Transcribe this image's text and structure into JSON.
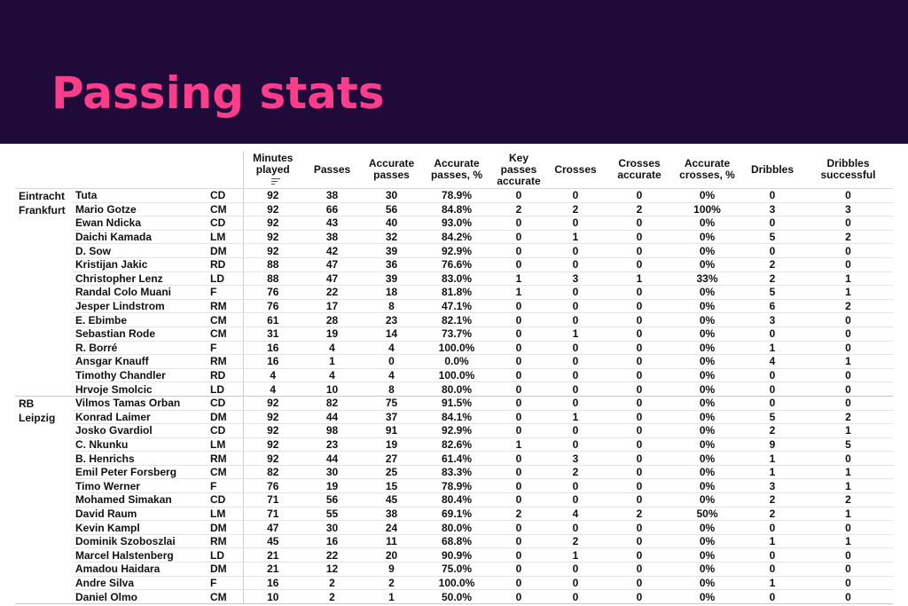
{
  "header": {
    "title": "Passing stats"
  },
  "colors": {
    "banner_bg": "#1f0a3a",
    "title": "#ff3d8b"
  },
  "table": {
    "columns": [
      {
        "key": "min",
        "label": "Minutes played",
        "sortable": true,
        "sort_icon": "sort-lines-icon"
      },
      {
        "key": "passes",
        "label": "Passes"
      },
      {
        "key": "acc",
        "label": "Accurate passes"
      },
      {
        "key": "accp",
        "label": "Accurate passes, %"
      },
      {
        "key": "key",
        "label": "Key passes accurate"
      },
      {
        "key": "cr",
        "label": "Crosses"
      },
      {
        "key": "cra",
        "label": "Crosses accurate"
      },
      {
        "key": "crp",
        "label": "Accurate crosses, %"
      },
      {
        "key": "dr",
        "label": "Dribbles"
      },
      {
        "key": "drs",
        "label": "Dribbles successful"
      }
    ],
    "teams": [
      {
        "name": "Eintracht Frankfurt",
        "rows": [
          [
            "Tuta",
            "CD",
            "92",
            "38",
            "30",
            "78.9%",
            "0",
            "0",
            "0",
            "0%",
            "0",
            "0"
          ],
          [
            "Mario Gotze",
            "CM",
            "92",
            "66",
            "56",
            "84.8%",
            "2",
            "2",
            "2",
            "100%",
            "3",
            "3"
          ],
          [
            "Ewan Ndicka",
            "CD",
            "92",
            "43",
            "40",
            "93.0%",
            "0",
            "0",
            "0",
            "0%",
            "0",
            "0"
          ],
          [
            "Daichi Kamada",
            "LM",
            "92",
            "38",
            "32",
            "84.2%",
            "0",
            "1",
            "0",
            "0%",
            "5",
            "2"
          ],
          [
            "D. Sow",
            "DM",
            "92",
            "42",
            "39",
            "92.9%",
            "0",
            "0",
            "0",
            "0%",
            "0",
            "0"
          ],
          [
            "Kristijan Jakic",
            "RD",
            "88",
            "47",
            "36",
            "76.6%",
            "0",
            "0",
            "0",
            "0%",
            "2",
            "0"
          ],
          [
            "Christopher Lenz",
            "LD",
            "88",
            "47",
            "39",
            "83.0%",
            "1",
            "3",
            "1",
            "33%",
            "2",
            "1"
          ],
          [
            "Randal Colo Muani",
            "F",
            "76",
            "22",
            "18",
            "81.8%",
            "1",
            "0",
            "0",
            "0%",
            "5",
            "1"
          ],
          [
            "Jesper Lindstrom",
            "RM",
            "76",
            "17",
            "8",
            "47.1%",
            "0",
            "0",
            "0",
            "0%",
            "6",
            "2"
          ],
          [
            "E. Ebimbe",
            "CM",
            "61",
            "28",
            "23",
            "82.1%",
            "0",
            "0",
            "0",
            "0%",
            "3",
            "0"
          ],
          [
            "Sebastian Rode",
            "CM",
            "31",
            "19",
            "14",
            "73.7%",
            "0",
            "1",
            "0",
            "0%",
            "0",
            "0"
          ],
          [
            "R. Borré",
            "F",
            "16",
            "4",
            "4",
            "100.0%",
            "0",
            "0",
            "0",
            "0%",
            "1",
            "0"
          ],
          [
            "Ansgar Knauff",
            "RM",
            "16",
            "1",
            "0",
            "0.0%",
            "0",
            "0",
            "0",
            "0%",
            "4",
            "1"
          ],
          [
            "Timothy Chandler",
            "RD",
            "4",
            "4",
            "4",
            "100.0%",
            "0",
            "0",
            "0",
            "0%",
            "0",
            "0"
          ],
          [
            "Hrvoje Smolcic",
            "LD",
            "4",
            "10",
            "8",
            "80.0%",
            "0",
            "0",
            "0",
            "0%",
            "0",
            "0"
          ]
        ]
      },
      {
        "name": "RB Leipzig",
        "rows": [
          [
            "Vilmos Tamas Orban",
            "CD",
            "92",
            "82",
            "75",
            "91.5%",
            "0",
            "0",
            "0",
            "0%",
            "0",
            "0"
          ],
          [
            "Konrad Laimer",
            "DM",
            "92",
            "44",
            "37",
            "84.1%",
            "0",
            "1",
            "0",
            "0%",
            "5",
            "2"
          ],
          [
            "Josko Gvardiol",
            "CD",
            "92",
            "98",
            "91",
            "92.9%",
            "0",
            "0",
            "0",
            "0%",
            "2",
            "1"
          ],
          [
            "C. Nkunku",
            "LM",
            "92",
            "23",
            "19",
            "82.6%",
            "1",
            "0",
            "0",
            "0%",
            "9",
            "5"
          ],
          [
            "B. Henrichs",
            "RM",
            "92",
            "44",
            "27",
            "61.4%",
            "0",
            "3",
            "0",
            "0%",
            "1",
            "0"
          ],
          [
            "Emil Peter Forsberg",
            "CM",
            "82",
            "30",
            "25",
            "83.3%",
            "0",
            "2",
            "0",
            "0%",
            "1",
            "1"
          ],
          [
            "Timo Werner",
            "F",
            "76",
            "19",
            "15",
            "78.9%",
            "0",
            "0",
            "0",
            "0%",
            "3",
            "1"
          ],
          [
            "Mohamed Simakan",
            "CD",
            "71",
            "56",
            "45",
            "80.4%",
            "0",
            "0",
            "0",
            "0%",
            "2",
            "2"
          ],
          [
            "David Raum",
            "LM",
            "71",
            "55",
            "38",
            "69.1%",
            "2",
            "4",
            "2",
            "50%",
            "2",
            "1"
          ],
          [
            "Kevin Kampl",
            "DM",
            "47",
            "30",
            "24",
            "80.0%",
            "0",
            "0",
            "0",
            "0%",
            "0",
            "0"
          ],
          [
            "Dominik Szoboszlai",
            "RM",
            "45",
            "16",
            "11",
            "68.8%",
            "0",
            "2",
            "0",
            "0%",
            "1",
            "1"
          ],
          [
            "Marcel Halstenberg",
            "LD",
            "21",
            "22",
            "20",
            "90.9%",
            "0",
            "1",
            "0",
            "0%",
            "0",
            "0"
          ],
          [
            "Amadou Haidara",
            "DM",
            "21",
            "12",
            "9",
            "75.0%",
            "0",
            "0",
            "0",
            "0%",
            "0",
            "0"
          ],
          [
            "Andre Silva",
            "F",
            "16",
            "2",
            "2",
            "100.0%",
            "0",
            "0",
            "0",
            "0%",
            "1",
            "0"
          ],
          [
            "Daniel Olmo",
            "CM",
            "10",
            "2",
            "1",
            "50.0%",
            "0",
            "0",
            "0",
            "0%",
            "0",
            "0"
          ]
        ]
      }
    ]
  }
}
